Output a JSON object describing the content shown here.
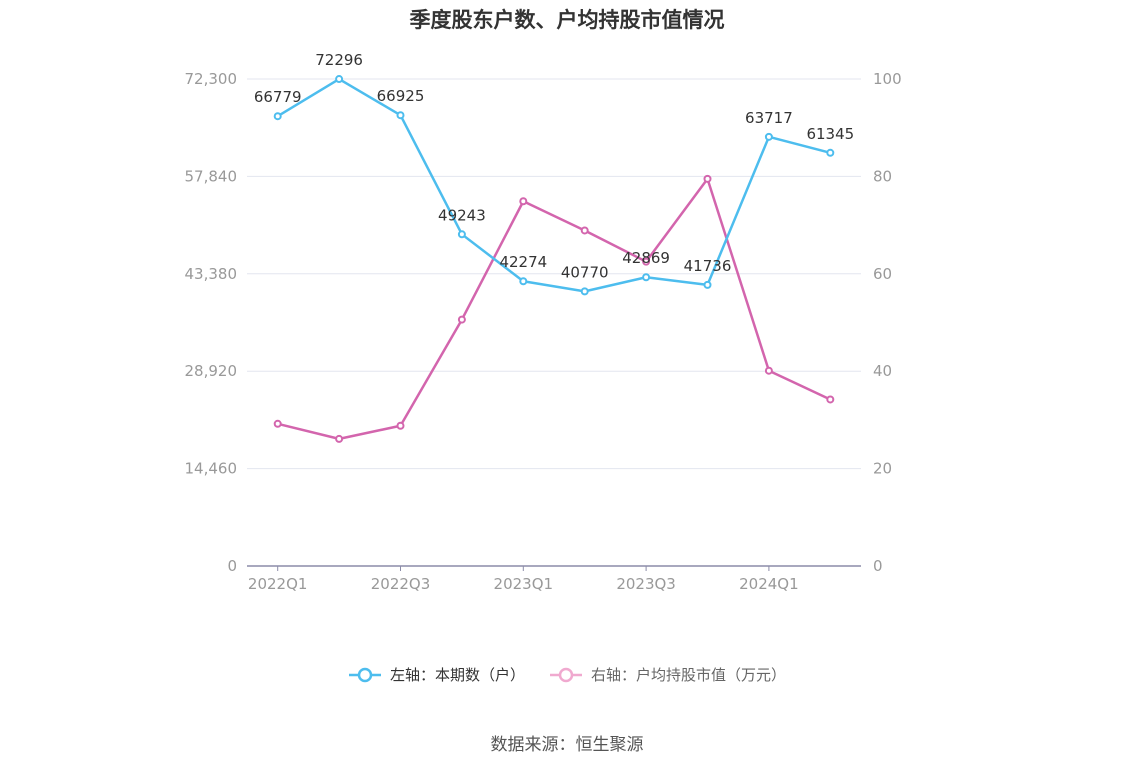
{
  "title": "季度股东户数、户均持股市值情况",
  "source": "数据来源：恒生聚源",
  "colors": {
    "series1": "#4dbdee",
    "series2": "#d365ad",
    "grid": "#e3e6ef",
    "axis": "#8c8ca8"
  },
  "legend": [
    {
      "label": "左轴：本期数（户）",
      "icon": "circle-line-marker"
    },
    {
      "label": "右轴：户均持股市值（万元）",
      "icon": "circle-line-marker"
    }
  ],
  "chart_data": {
    "type": "line",
    "title": "季度股东户数、户均持股市值情况",
    "x": [
      "2022Q1",
      "2022Q2",
      "2022Q3",
      "2022Q4",
      "2023Q1",
      "2023Q2",
      "2023Q3",
      "2023Q4",
      "2024Q1",
      "2024Q2"
    ],
    "x_tick_labels": [
      "2022Q1",
      "2022Q3",
      "2023Q1",
      "2023Q3",
      "2024Q1"
    ],
    "y_left": {
      "ticks": [
        "0",
        "14,460",
        "28,920",
        "43,380",
        "57,840",
        "72,300"
      ],
      "ylim": [
        0,
        72300
      ]
    },
    "y_right": {
      "ticks": [
        "0",
        "20",
        "40",
        "60",
        "80",
        "100"
      ],
      "ylim": [
        0,
        100
      ]
    },
    "grid": true,
    "legend_position": "bottom",
    "series": [
      {
        "name": "左轴：本期数（户）",
        "axis": "left",
        "values": [
          66779,
          72296,
          66925,
          49243,
          42274,
          40770,
          42869,
          41736,
          63717,
          61345
        ],
        "labels": [
          "66779",
          "72296",
          "66925",
          "49243",
          "42274",
          "40770",
          "42869",
          "41736",
          "63717",
          "61345"
        ]
      },
      {
        "name": "右轴：户均持股市值（万元）",
        "axis": "right",
        "values": [
          29.2,
          26.1,
          28.8,
          50.6,
          74.9,
          68.9,
          62.5,
          79.5,
          40.1,
          34.2
        ]
      }
    ]
  }
}
